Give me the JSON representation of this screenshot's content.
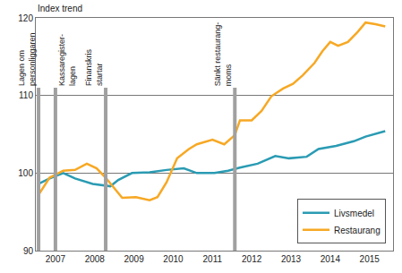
{
  "chart_data": {
    "type": "line",
    "y_label": "Index trend",
    "xlim": [
      2007.0,
      2016.1
    ],
    "xticks": [
      {
        "value": 2007.5,
        "label": "2007"
      },
      {
        "value": 2008.5,
        "label": "2008"
      },
      {
        "value": 2009.5,
        "label": "2009"
      },
      {
        "value": 2010.5,
        "label": "2010"
      },
      {
        "value": 2011.5,
        "label": "2011"
      },
      {
        "value": 2012.5,
        "label": "2012"
      },
      {
        "value": 2013.5,
        "label": "2013"
      },
      {
        "value": 2014.5,
        "label": "2014"
      },
      {
        "value": 2015.5,
        "label": "2015"
      }
    ],
    "ylim": [
      90,
      120
    ],
    "yticks": [
      90,
      100,
      110,
      120
    ],
    "grid": true,
    "legend": "lower right",
    "series": [
      {
        "name": "Livsmedel",
        "color": "#2a9bb3",
        "x": [
          2007.07,
          2007.35,
          2007.7,
          2008.0,
          2008.45,
          2008.9,
          2009.1,
          2009.45,
          2009.9,
          2010.33,
          2010.77,
          2011.1,
          2011.55,
          2011.9,
          2012.2,
          2012.65,
          2013.1,
          2013.45,
          2013.9,
          2014.2,
          2014.65,
          2015.1,
          2015.4,
          2015.9
        ],
        "values": [
          98.6,
          99.3,
          100.0,
          99.3,
          98.6,
          98.3,
          99.1,
          100.0,
          100.1,
          100.4,
          100.6,
          100.0,
          100.0,
          100.3,
          100.7,
          101.2,
          102.2,
          101.9,
          102.1,
          103.1,
          103.5,
          104.1,
          104.7,
          105.4
        ]
      },
      {
        "name": "Restaurang",
        "color": "#f7a823",
        "x": [
          2007.07,
          2007.35,
          2007.7,
          2008.0,
          2008.3,
          2008.55,
          2008.78,
          2009.0,
          2009.2,
          2009.55,
          2009.9,
          2010.1,
          2010.33,
          2010.6,
          2010.9,
          2011.1,
          2011.5,
          2011.8,
          2012.07,
          2012.2,
          2012.5,
          2012.75,
          2013.0,
          2013.3,
          2013.55,
          2013.8,
          2014.1,
          2014.3,
          2014.5,
          2014.7,
          2014.95,
          2015.2,
          2015.4,
          2015.65,
          2015.9
        ],
        "values": [
          97.2,
          99.4,
          100.3,
          100.4,
          101.2,
          100.6,
          99.4,
          98.1,
          96.8,
          96.9,
          96.5,
          96.9,
          98.8,
          101.9,
          103.1,
          103.7,
          104.3,
          103.7,
          104.9,
          106.8,
          106.8,
          108.0,
          109.9,
          110.9,
          111.5,
          112.6,
          114.2,
          115.7,
          116.9,
          116.4,
          116.9,
          118.2,
          119.4,
          119.2,
          118.9
        ]
      }
    ],
    "annotations": [
      {
        "x": 2007.07,
        "y": 111,
        "text": "Lagen om\npersonliggaren"
      },
      {
        "x": 2007.5,
        "y": 111,
        "text": "Kassaregister-\nlagen"
      },
      {
        "x": 2008.78,
        "y": 111,
        "text": "Finanskris\nstartar"
      },
      {
        "x": 2012.07,
        "y": 111,
        "text": "Sänkt restaurang-\nmoms"
      }
    ]
  }
}
